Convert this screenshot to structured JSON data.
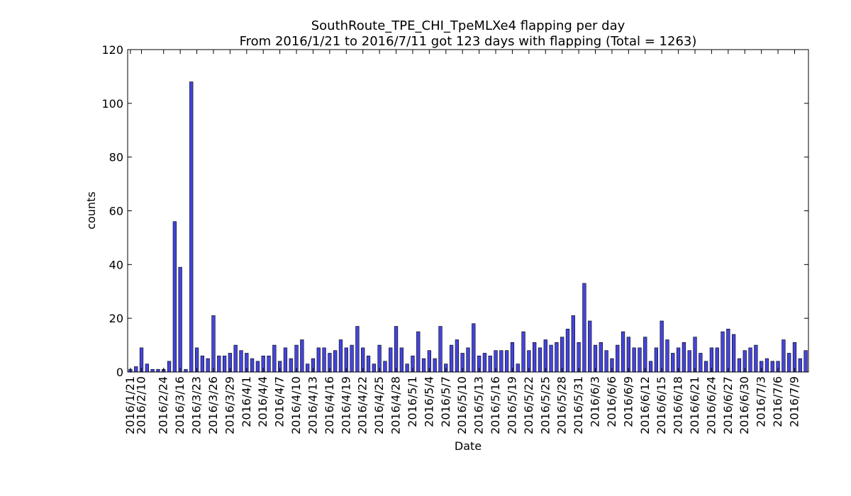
{
  "chart_data": {
    "type": "bar",
    "title": "SouthRoute_TPE_CHI_TpeMLXe4 flapping per day",
    "subtitle": "From 2016/1/21 to 2016/7/11 got 123 days with flapping (Total = 1263)",
    "xlabel": "Date",
    "ylabel": "counts",
    "ylim": [
      0,
      120
    ],
    "yticks": [
      0,
      20,
      40,
      60,
      80,
      100,
      120
    ],
    "grid": false,
    "legend": "none",
    "bar_color": "#4444dd",
    "categories": [
      "2016/1/21",
      "2016/1/22",
      "2016/2/10",
      "2016/2/11",
      "2016/2/12",
      "2016/2/13",
      "2016/2/24",
      "2016/2/25",
      "2016/3/15",
      "2016/3/16",
      "2016/3/17",
      "2016/3/22",
      "2016/3/23",
      "2016/3/24",
      "2016/3/25",
      "2016/3/26",
      "2016/3/27",
      "2016/3/28",
      "2016/3/29",
      "2016/3/30",
      "2016/3/31",
      "2016/4/1",
      "2016/4/2",
      "2016/4/3",
      "2016/4/4",
      "2016/4/5",
      "2016/4/6",
      "2016/4/7",
      "2016/4/8",
      "2016/4/9",
      "2016/4/10",
      "2016/4/11",
      "2016/4/12",
      "2016/4/13",
      "2016/4/14",
      "2016/4/15",
      "2016/4/16",
      "2016/4/17",
      "2016/4/18",
      "2016/4/19",
      "2016/4/20",
      "2016/4/21",
      "2016/4/22",
      "2016/4/23",
      "2016/4/24",
      "2016/4/25",
      "2016/4/26",
      "2016/4/27",
      "2016/4/28",
      "2016/4/29",
      "2016/4/30",
      "2016/5/1",
      "2016/5/2",
      "2016/5/3",
      "2016/5/4",
      "2016/5/5",
      "2016/5/6",
      "2016/5/7",
      "2016/5/8",
      "2016/5/9",
      "2016/5/10",
      "2016/5/11",
      "2016/5/12",
      "2016/5/13",
      "2016/5/14",
      "2016/5/15",
      "2016/5/16",
      "2016/5/17",
      "2016/5/18",
      "2016/5/19",
      "2016/5/20",
      "2016/5/21",
      "2016/5/22",
      "2016/5/23",
      "2016/5/24",
      "2016/5/25",
      "2016/5/26",
      "2016/5/27",
      "2016/5/28",
      "2016/5/29",
      "2016/5/30",
      "2016/5/31",
      "2016/6/1",
      "2016/6/2",
      "2016/6/3",
      "2016/6/4",
      "2016/6/5",
      "2016/6/6",
      "2016/6/7",
      "2016/6/8",
      "2016/6/9",
      "2016/6/10",
      "2016/6/11",
      "2016/6/12",
      "2016/6/13",
      "2016/6/14",
      "2016/6/15",
      "2016/6/16",
      "2016/6/17",
      "2016/6/18",
      "2016/6/19",
      "2016/6/20",
      "2016/6/21",
      "2016/6/22",
      "2016/6/23",
      "2016/6/24",
      "2016/6/25",
      "2016/6/26",
      "2016/6/27",
      "2016/6/28",
      "2016/6/29",
      "2016/6/30",
      "2016/7/1",
      "2016/7/2",
      "2016/7/3",
      "2016/7/4",
      "2016/7/5",
      "2016/7/6",
      "2016/7/7",
      "2016/7/8",
      "2016/7/9",
      "2016/7/10",
      "2016/7/11"
    ],
    "values": [
      1,
      2,
      9,
      3,
      1,
      1,
      1,
      4,
      56,
      39,
      1,
      108,
      9,
      6,
      5,
      21,
      6,
      6,
      7,
      10,
      8,
      7,
      5,
      4,
      6,
      6,
      10,
      4,
      9,
      5,
      10,
      12,
      3,
      5,
      9,
      9,
      7,
      8,
      12,
      9,
      10,
      17,
      9,
      6,
      3,
      10,
      4,
      9,
      17,
      9,
      3,
      6,
      15,
      5,
      8,
      5,
      17,
      3,
      10,
      12,
      7,
      9,
      18,
      6,
      7,
      6,
      8,
      8,
      8,
      11,
      3,
      15,
      8,
      11,
      9,
      12,
      10,
      11,
      13,
      16,
      21,
      11,
      33,
      19,
      10,
      11,
      8,
      5,
      10,
      15,
      13,
      9,
      9,
      13,
      4,
      9,
      19,
      12,
      7,
      9,
      11,
      8,
      13,
      7,
      4,
      9,
      9,
      15,
      16,
      14,
      5,
      8,
      9,
      10,
      4,
      5,
      4,
      4,
      12,
      7,
      11,
      5,
      8
    ],
    "tick_labels": [
      "2016/1/21",
      "2016/2/10",
      "2016/2/24",
      "2016/3/16",
      "2016/3/23",
      "2016/3/26",
      "2016/3/29",
      "2016/4/1",
      "2016/4/4",
      "2016/4/7",
      "2016/4/10",
      "2016/4/13",
      "2016/4/16",
      "2016/4/19",
      "2016/4/22",
      "2016/4/25",
      "2016/4/28",
      "2016/5/1",
      "2016/5/4",
      "2016/5/7",
      "2016/5/10",
      "2016/5/13",
      "2016/5/16",
      "2016/5/19",
      "2016/5/22",
      "2016/5/25",
      "2016/5/28",
      "2016/5/31",
      "2016/6/3",
      "2016/6/6",
      "2016/6/9",
      "2016/6/12",
      "2016/6/15",
      "2016/6/18",
      "2016/6/21",
      "2016/6/24",
      "2016/6/27",
      "2016/6/30",
      "2016/7/3",
      "2016/7/6",
      "2016/7/9"
    ]
  }
}
